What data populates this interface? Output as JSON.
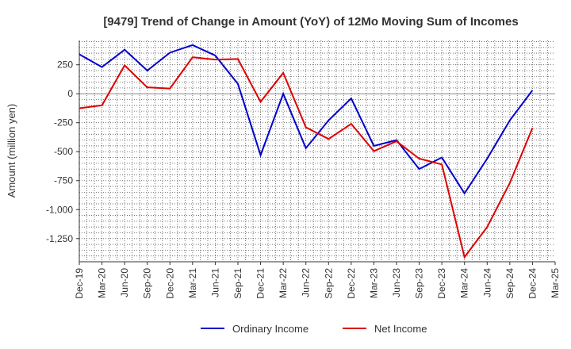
{
  "chart_data": {
    "type": "line",
    "title": "[9479]  Trend of Change in Amount (YoY) of 12Mo Moving Sum of Incomes",
    "xlabel": "",
    "ylabel": "Amount (million yen)",
    "ylim": [
      -1450,
      460
    ],
    "yticks": [
      250,
      0,
      -250,
      -500,
      -750,
      -1000,
      -1250
    ],
    "ytick_labels": [
      "250",
      "0",
      "-250",
      "-500",
      "-750",
      "-1,000",
      "-1,250"
    ],
    "categories": [
      "Dec-19",
      "Mar-20",
      "Jun-20",
      "Sep-20",
      "Dec-20",
      "Mar-21",
      "Jun-21",
      "Sep-21",
      "Dec-21",
      "Mar-22",
      "Jun-22",
      "Sep-22",
      "Dec-22",
      "Mar-23",
      "Jun-23",
      "Sep-23",
      "Dec-23",
      "Mar-24",
      "Jun-24",
      "Sep-24",
      "Dec-24",
      "Mar-25"
    ],
    "grid": true,
    "legend_position": "bottom-center",
    "series": [
      {
        "name": "Ordinary Income",
        "color": "#0000cc",
        "values": [
          340,
          230,
          380,
          200,
          355,
          420,
          330,
          85,
          -530,
          0,
          -470,
          -230,
          -40,
          -450,
          -400,
          -650,
          -550,
          -860,
          -560,
          -230,
          30,
          null
        ]
      },
      {
        "name": "Net Income",
        "color": "#dd0000",
        "values": [
          -125,
          -100,
          245,
          55,
          45,
          315,
          295,
          300,
          -70,
          180,
          -290,
          -390,
          -260,
          -495,
          -410,
          -560,
          -610,
          -1410,
          -1150,
          -770,
          -295,
          null
        ]
      }
    ]
  }
}
